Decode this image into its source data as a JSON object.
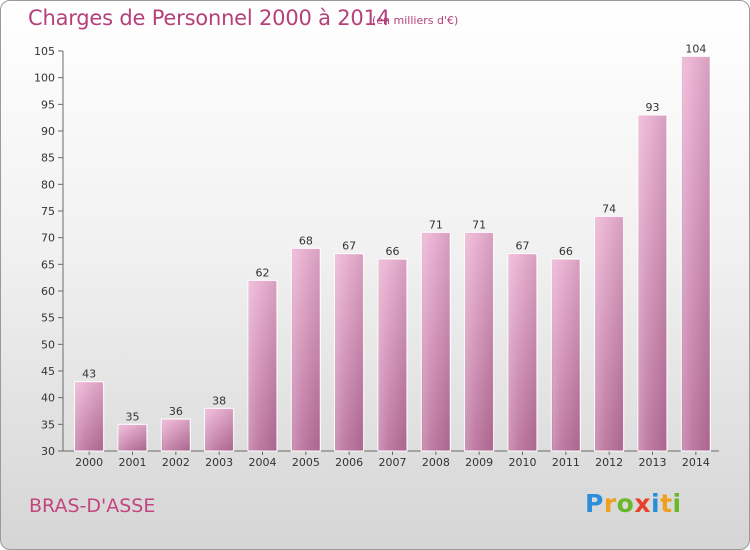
{
  "chart_data": {
    "type": "bar",
    "title": "Charges de Personnel 2000 à 2014",
    "subtitle": "(en milliers d'€)",
    "categories": [
      "2000",
      "2001",
      "2002",
      "2003",
      "2004",
      "2005",
      "2006",
      "2007",
      "2008",
      "2009",
      "2010",
      "2011",
      "2012",
      "2013",
      "2014"
    ],
    "values": [
      43,
      35,
      36,
      38,
      62,
      68,
      67,
      66,
      71,
      71,
      67,
      66,
      74,
      93,
      104
    ],
    "ylim": [
      30,
      105
    ],
    "yticks": [
      30,
      35,
      40,
      45,
      50,
      55,
      60,
      65,
      70,
      75,
      80,
      85,
      90,
      95,
      100,
      105
    ],
    "ylabel": "",
    "xlabel": "",
    "grid": false,
    "bar_color": "#c87ba8",
    "bar_color_light": "#e6a9ca"
  },
  "commune": "BRAS-D'ASSE",
  "brand": [
    "P",
    "r",
    "o",
    "x",
    "i",
    "t",
    "i"
  ],
  "colors": {
    "title": "#b5407a",
    "axis": "#555555"
  }
}
